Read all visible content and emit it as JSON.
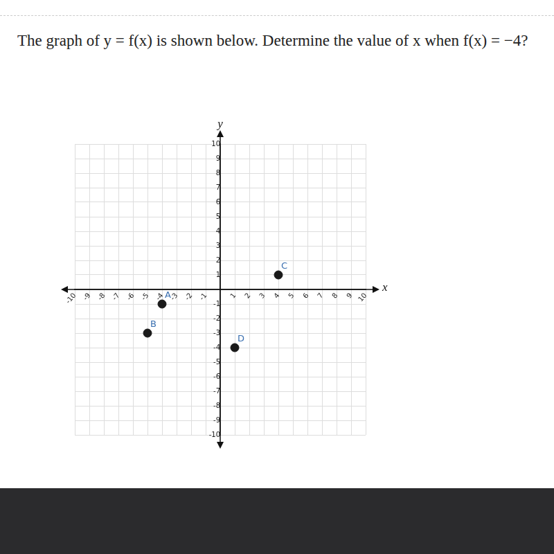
{
  "chart_data": {
    "type": "scatter",
    "title": "The graph of y = f(x) is shown below. Determine the value of x when f(x) = −4?",
    "x_label": "x",
    "y_label": "y",
    "x": [
      -4,
      -5,
      4,
      1
    ],
    "values": [
      -1,
      -3,
      1,
      -4
    ],
    "point_labels": [
      "A",
      "B",
      "C",
      "D"
    ],
    "color": "#1a1a1a",
    "xlim": [
      -10,
      10
    ],
    "xticks": [
      -10,
      -9,
      -8,
      -7,
      -6,
      -5,
      -4,
      -3,
      -2,
      -1,
      1,
      2,
      3,
      4,
      5,
      6,
      7,
      8,
      9,
      10
    ],
    "ylim": [
      -10,
      10
    ],
    "yticks": [
      -10,
      -9,
      -8,
      -7,
      -6,
      -5,
      -4,
      -3,
      -2,
      -1,
      1,
      2,
      3,
      4,
      5,
      6,
      7,
      8,
      9,
      10
    ],
    "grid": true
  }
}
